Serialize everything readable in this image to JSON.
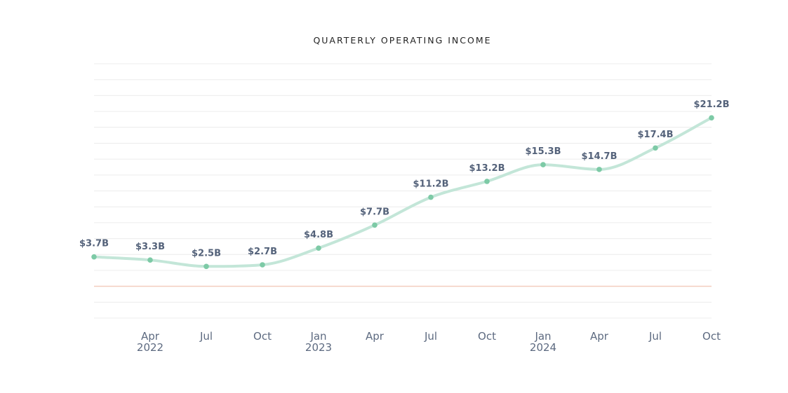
{
  "chart_data": {
    "type": "line",
    "title": "QUARTERLY OPERATING INCOME",
    "xlabel": "",
    "ylabel": "",
    "x": [
      "2022-01",
      "2022-04",
      "2022-07",
      "2022-10",
      "2023-01",
      "2023-04",
      "2023-07",
      "2023-10",
      "2024-01",
      "2024-04",
      "2024-07",
      "2024-10"
    ],
    "values": [
      3.7,
      3.3,
      2.5,
      2.7,
      4.8,
      7.7,
      11.2,
      13.2,
      15.3,
      14.7,
      17.4,
      21.2
    ],
    "data_labels": [
      "$3.7B",
      "$3.3B",
      "$2.5B",
      "$2.7B",
      "$4.8B",
      "$7.7B",
      "$11.2B",
      "$13.2B",
      "$15.3B",
      "$14.7B",
      "$17.4B",
      "$21.2B"
    ],
    "x_tick_labels": [
      {
        "index": 1,
        "line1": "Apr",
        "line2": "2022"
      },
      {
        "index": 2,
        "line1": "Jul",
        "line2": ""
      },
      {
        "index": 3,
        "line1": "Oct",
        "line2": ""
      },
      {
        "index": 4,
        "line1": "Jan",
        "line2": "2023"
      },
      {
        "index": 5,
        "line1": "Apr",
        "line2": ""
      },
      {
        "index": 6,
        "line1": "Jul",
        "line2": ""
      },
      {
        "index": 7,
        "line1": "Oct",
        "line2": ""
      },
      {
        "index": 8,
        "line1": "Jan",
        "line2": "2024"
      },
      {
        "index": 9,
        "line1": "Apr",
        "line2": ""
      },
      {
        "index": 10,
        "line1": "Jul",
        "line2": ""
      },
      {
        "index": 11,
        "line1": "Oct",
        "line2": ""
      }
    ],
    "ylim": [
      -4,
      28
    ],
    "y_gridlines": [
      -4,
      -2,
      0,
      2,
      4,
      6,
      8,
      10,
      12,
      14,
      16,
      18,
      20,
      22,
      24,
      26,
      28
    ],
    "reference_line": 0,
    "grid": true,
    "legend": "none",
    "colors": {
      "line": "#c3e6d8",
      "point": "#7dcaa6",
      "label": "#54627a",
      "zero_line": "#f3cdbe",
      "grid": "#ececec"
    }
  }
}
